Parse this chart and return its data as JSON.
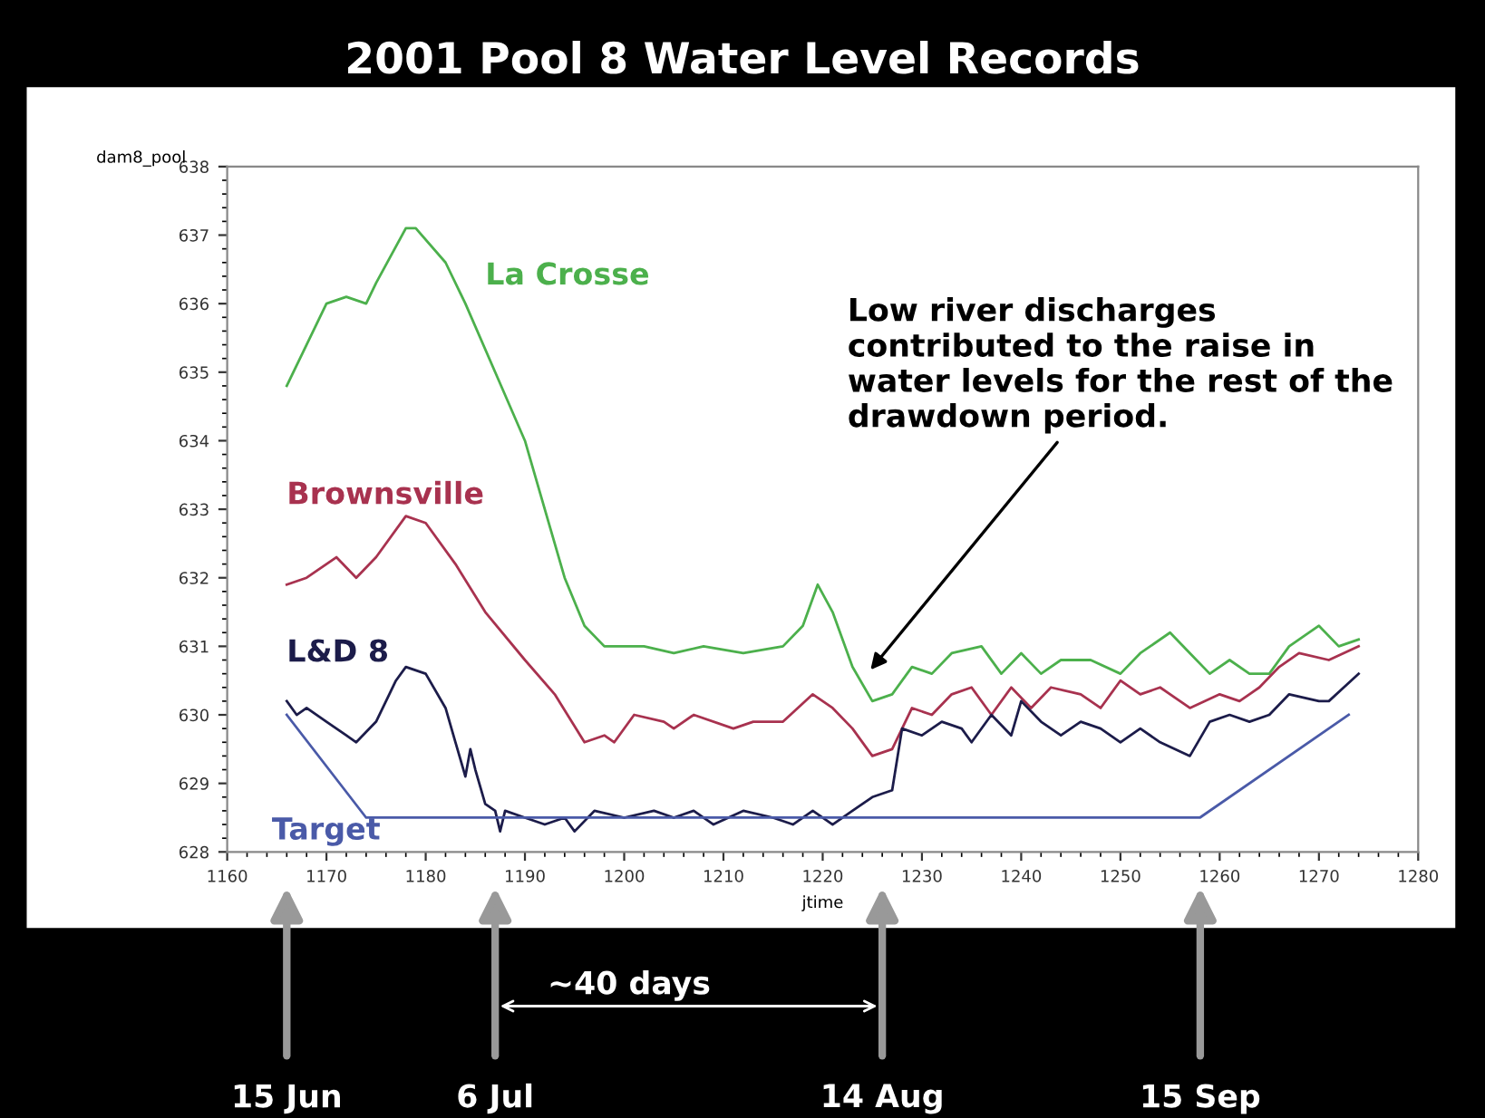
{
  "chart_data": {
    "type": "line",
    "title": "2001 Pool 8 Water Level Records",
    "xlabel": "jtime",
    "ylabel": "dam8_pool",
    "xlim": [
      1160,
      1280
    ],
    "xticks": [
      1160,
      1170,
      1180,
      1190,
      1200,
      1210,
      1220,
      1230,
      1240,
      1250,
      1260,
      1270,
      1280
    ],
    "ylim": [
      628,
      638
    ],
    "yticks": [
      628,
      629,
      630,
      631,
      632,
      633,
      634,
      635,
      636,
      637,
      638
    ],
    "grid": false,
    "legend": false,
    "marker": "none",
    "line_style": "solid",
    "series": [
      {
        "name": "La Crosse",
        "color": "#4cb04c",
        "x": [
          1166,
          1170,
          1172,
          1174,
          1175,
          1178,
          1179,
          1182,
          1184,
          1187,
          1190,
          1192,
          1194,
          1196,
          1198,
          1202,
          1205,
          1208,
          1212,
          1216,
          1218,
          1219.5,
          1221,
          1223,
          1225,
          1227,
          1229,
          1231,
          1233,
          1236,
          1238,
          1240,
          1242,
          1244,
          1247,
          1250,
          1252,
          1255,
          1257,
          1259,
          1261,
          1263,
          1265,
          1267,
          1270,
          1272,
          1274
        ],
        "values": [
          634.8,
          636.0,
          636.1,
          636.0,
          636.3,
          637.1,
          637.1,
          636.6,
          636.0,
          635.0,
          634.0,
          633.0,
          632.0,
          631.3,
          631.0,
          631.0,
          630.9,
          631.0,
          630.9,
          631.0,
          631.3,
          631.9,
          631.5,
          630.7,
          630.2,
          630.3,
          630.7,
          630.6,
          630.9,
          631.0,
          630.6,
          630.9,
          630.6,
          630.8,
          630.8,
          630.6,
          630.9,
          631.2,
          630.9,
          630.6,
          630.8,
          630.6,
          630.6,
          631.0,
          631.3,
          631.0,
          631.1
        ]
      },
      {
        "name": "Brownsville",
        "color": "#a8324f",
        "x": [
          1166,
          1168,
          1171,
          1173,
          1175,
          1178,
          1180,
          1183,
          1186,
          1190,
          1193,
          1196,
          1198,
          1199,
          1201,
          1204,
          1205,
          1207,
          1211,
          1213,
          1216,
          1219,
          1221,
          1223,
          1225,
          1227,
          1229,
          1231,
          1233,
          1235,
          1237,
          1239,
          1241,
          1243,
          1246,
          1248,
          1250,
          1252,
          1254,
          1257,
          1260,
          1262,
          1264,
          1266,
          1268,
          1271,
          1274
        ],
        "values": [
          631.9,
          632.0,
          632.3,
          632.0,
          632.3,
          632.9,
          632.8,
          632.2,
          631.5,
          630.8,
          630.3,
          629.6,
          629.7,
          629.6,
          630.0,
          629.9,
          629.8,
          630.0,
          629.8,
          629.9,
          629.9,
          630.3,
          630.1,
          629.8,
          629.4,
          629.5,
          630.1,
          630.0,
          630.3,
          630.4,
          630.0,
          630.4,
          630.1,
          630.4,
          630.3,
          630.1,
          630.5,
          630.3,
          630.4,
          630.1,
          630.3,
          630.2,
          630.4,
          630.7,
          630.9,
          630.8,
          631.0
        ]
      },
      {
        "name": "L&D 8",
        "color": "#1c1c4a",
        "x": [
          1166,
          1167,
          1168,
          1170,
          1172,
          1173,
          1175,
          1177,
          1178,
          1180,
          1182,
          1183,
          1184,
          1184.5,
          1185,
          1186,
          1187,
          1187.5,
          1188,
          1190,
          1192,
          1194,
          1195,
          1197,
          1200,
          1203,
          1205,
          1207,
          1209,
          1212,
          1215,
          1217,
          1219,
          1221,
          1223,
          1225,
          1227,
          1228,
          1230,
          1232,
          1234,
          1235,
          1237,
          1239,
          1240,
          1242,
          1244,
          1246,
          1248,
          1250,
          1252,
          1254,
          1257,
          1259,
          1261,
          1263,
          1265,
          1267,
          1270,
          1271,
          1274
        ],
        "values": [
          630.2,
          630.0,
          630.1,
          629.9,
          629.7,
          629.6,
          629.9,
          630.5,
          630.7,
          630.6,
          630.1,
          629.6,
          629.1,
          629.5,
          629.2,
          628.7,
          628.6,
          628.3,
          628.6,
          628.5,
          628.4,
          628.5,
          628.3,
          628.6,
          628.5,
          628.6,
          628.5,
          628.6,
          628.4,
          628.6,
          628.5,
          628.4,
          628.6,
          628.4,
          628.6,
          628.8,
          628.9,
          629.8,
          629.7,
          629.9,
          629.8,
          629.6,
          630.0,
          629.7,
          630.2,
          629.9,
          629.7,
          629.9,
          629.8,
          629.6,
          629.8,
          629.6,
          629.4,
          629.9,
          630.0,
          629.9,
          630.0,
          630.3,
          630.2,
          630.2,
          630.6
        ]
      },
      {
        "name": "Target",
        "color": "#4a5aa8",
        "x": [
          1166,
          1174,
          1258,
          1273
        ],
        "values": [
          630.0,
          628.5,
          628.5,
          630.0
        ]
      }
    ],
    "annotations": [
      {
        "text": "Low river discharges\ncontributed to the raise in\nwater levels for the rest of the\ndrawdown period.",
        "x": 1224.5,
        "y": 630.6
      },
      "15 Jun",
      "6 Jul",
      "~40 days",
      "14 Aug",
      "15 Sep"
    ]
  }
}
